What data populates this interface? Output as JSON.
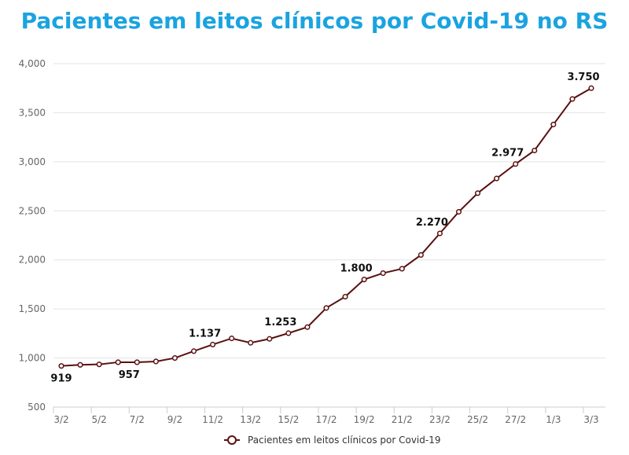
{
  "chart_data": {
    "type": "line",
    "title": "Pacientes em leitos clínicos por Covid-19 no RS",
    "x": [
      "3/2",
      "4/2",
      "5/2",
      "6/2",
      "7/2",
      "8/2",
      "9/2",
      "10/2",
      "11/2",
      "12/2",
      "13/2",
      "14/2",
      "15/2",
      "16/2",
      "17/2",
      "18/2",
      "19/2",
      "20/2",
      "21/2",
      "22/2",
      "23/2",
      "24/2",
      "25/2",
      "26/2",
      "27/2",
      "28/2",
      "1/3",
      "2/3",
      "3/3"
    ],
    "x_tick_labels": [
      "3/2",
      "5/2",
      "7/2",
      "9/2",
      "11/2",
      "13/2",
      "15/2",
      "17/2",
      "19/2",
      "21/2",
      "23/2",
      "25/2",
      "27/2",
      "1/3",
      "3/3"
    ],
    "series": [
      {
        "name": "Pacientes em leitos clínicos por Covid-19",
        "color": "#5a1010",
        "values": [
          919,
          930,
          935,
          957,
          957,
          965,
          1000,
          1070,
          1137,
          1200,
          1155,
          1195,
          1253,
          1315,
          1510,
          1625,
          1800,
          1865,
          1910,
          2050,
          2270,
          2490,
          2680,
          2830,
          2977,
          3115,
          3380,
          3640,
          3750
        ]
      }
    ],
    "data_labels": [
      {
        "index": 0,
        "text": "919",
        "pos": "below"
      },
      {
        "index": 4,
        "text": "957",
        "pos": "below"
      },
      {
        "index": 8,
        "text": "1.137",
        "pos": "above"
      },
      {
        "index": 12,
        "text": "1.253",
        "pos": "above"
      },
      {
        "index": 16,
        "text": "1.800",
        "pos": "above"
      },
      {
        "index": 20,
        "text": "2.270",
        "pos": "above"
      },
      {
        "index": 24,
        "text": "2.977",
        "pos": "above"
      },
      {
        "index": 28,
        "text": "3.750",
        "pos": "above"
      }
    ],
    "ylim": [
      500,
      4000
    ],
    "y_ticks": [
      500,
      1000,
      1500,
      2000,
      2500,
      3000,
      3500,
      4000
    ],
    "y_tick_labels": [
      "500",
      "1,000",
      "1,500",
      "2,000",
      "2,500",
      "3,000",
      "3,500",
      "4,000"
    ],
    "grid": true,
    "legend": "bottom"
  }
}
